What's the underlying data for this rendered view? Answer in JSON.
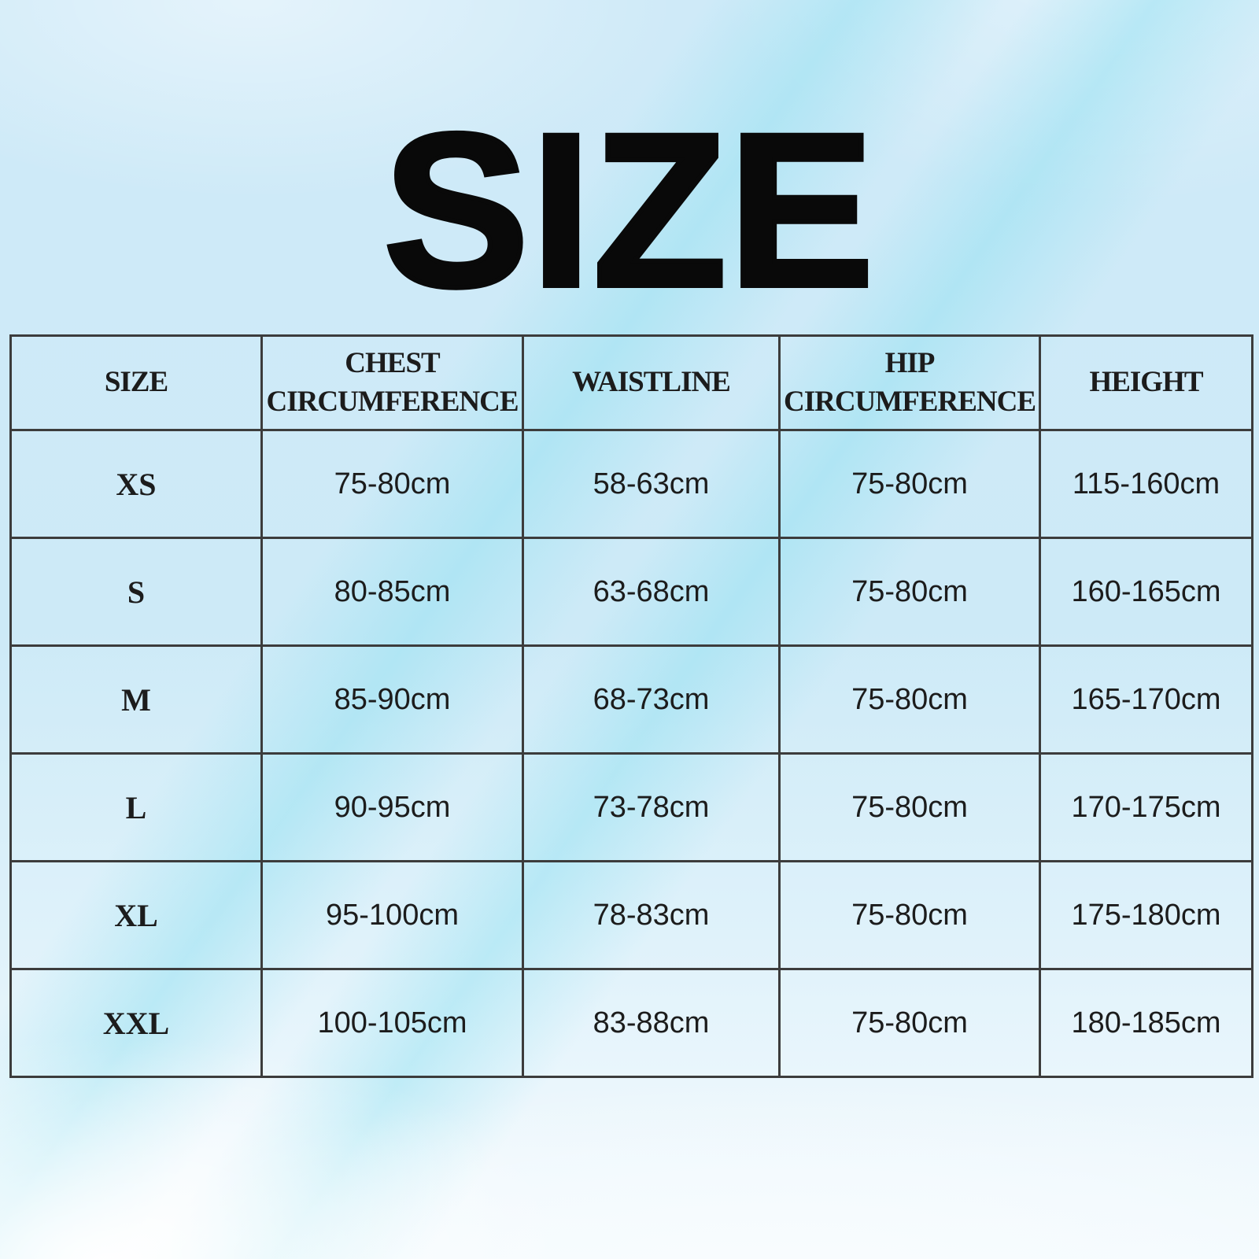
{
  "page": {
    "title": "SIZE"
  },
  "table": {
    "headers": [
      "SIZE",
      "CHEST CIRCUMFERENCE",
      "WAISTLINE",
      "HIP CIRCUMFERENCE",
      "HEIGHT"
    ],
    "rows": [
      {
        "size": "XS",
        "chest": "75-80cm",
        "waist": "58-63cm",
        "hip": "75-80cm",
        "height": "115-160cm"
      },
      {
        "size": "S",
        "chest": "80-85cm",
        "waist": "63-68cm",
        "hip": "75-80cm",
        "height": "160-165cm"
      },
      {
        "size": "M",
        "chest": "85-90cm",
        "waist": "68-73cm",
        "hip": "75-80cm",
        "height": "165-170cm"
      },
      {
        "size": "L",
        "chest": "90-95cm",
        "waist": "73-78cm",
        "hip": "75-80cm",
        "height": "170-175cm"
      },
      {
        "size": "XL",
        "chest": "95-100cm",
        "waist": "78-83cm",
        "hip": "75-80cm",
        "height": "175-180cm"
      },
      {
        "size": "XXL",
        "chest": "100-105cm",
        "waist": "83-88cm",
        "hip": "75-80cm",
        "height": "180-185cm"
      }
    ]
  },
  "colors": {
    "background_blue": "#cfe9f6",
    "background_bottom": "#f3fafd",
    "accent_streak": "#8cdff0",
    "table_border": "#3c3c3c",
    "text": "#1c1c1c"
  }
}
